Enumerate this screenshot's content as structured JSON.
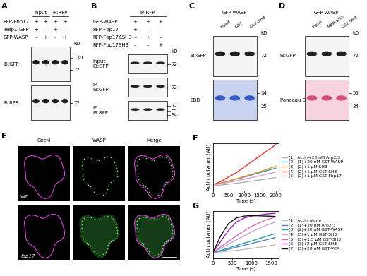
{
  "blot_panels": [
    {
      "label": "A",
      "lanes": 4,
      "unit": "kD",
      "headers": [
        {
          "text": "Input",
          "lanes": [
            0,
            1
          ]
        },
        {
          "text": "IP:RFP",
          "lanes": [
            2,
            3
          ]
        }
      ],
      "rows": [
        {
          "name": "RFP-Fbp17",
          "signs": [
            "+",
            "+",
            "+",
            "+"
          ]
        },
        {
          "name": "Teep1-GFP",
          "signs": [
            "+",
            "–",
            "+",
            "–"
          ]
        },
        {
          "name": "GFP-WASP",
          "signs": [
            "–",
            "+",
            "–",
            "+"
          ]
        }
      ],
      "blots": [
        {
          "label": [
            "IB:GFP"
          ],
          "markers": [
            130,
            72
          ]
        },
        {
          "label": [
            "IB:RFP"
          ],
          "markers": [
            72
          ]
        }
      ]
    },
    {
      "label": "B",
      "lanes": 3,
      "unit": "kD",
      "headers": [
        {
          "text": "IP:RFP",
          "lanes": [
            0,
            1,
            2
          ]
        }
      ],
      "rows": [
        {
          "name": "GFP-WASP",
          "signs": [
            "+",
            "+",
            "+"
          ]
        },
        {
          "name": "RFP-Fbp17",
          "signs": [
            "+",
            "–",
            "–"
          ]
        },
        {
          "name": "RFP-Fbp17ΔSH3",
          "signs": [
            "–",
            "+",
            "–"
          ]
        },
        {
          "name": "RFP-Fbp17SH3",
          "signs": [
            "–",
            "–",
            "+"
          ]
        }
      ],
      "blots": [
        {
          "label": [
            "Input",
            "IB:GFP"
          ],
          "markers": [
            72
          ]
        },
        {
          "label": [
            "IP",
            "IB:GFP"
          ],
          "markers": [
            72
          ]
        },
        {
          "label": [
            "IP",
            "IB:RFP"
          ],
          "markers": [
            72,
            55,
            34
          ]
        }
      ]
    },
    {
      "label": "C",
      "lanes": 3,
      "unit": "kD",
      "title": "GFP-WASP",
      "lane_labels": [
        "Input",
        "GST",
        "GST-SH3"
      ],
      "blots": [
        {
          "label": [
            "IB:GFP"
          ],
          "markers": [
            72
          ]
        },
        {
          "label": [
            "CBB"
          ],
          "markers": [
            34,
            25
          ]
        }
      ]
    },
    {
      "label": "D",
      "lanes": 3,
      "unit": "kD",
      "title": "GFP-WASP",
      "lane_labels": [
        "Input",
        "MBP-SH3",
        "GST-SH3"
      ],
      "blots": [
        {
          "label": [
            "IB:GFP"
          ],
          "markers": [
            72
          ]
        },
        {
          "label": [
            "Ponceau S"
          ],
          "markers": [
            55,
            34
          ]
        }
      ]
    }
  ],
  "image_panel": {
    "label": "E",
    "channels": [
      "GxcM",
      "WASP",
      "Merge"
    ],
    "rows": [
      "WT",
      "fbp17"
    ]
  },
  "chart_panel_labels": [
    "F",
    "G"
  ],
  "chart_data": [
    {
      "type": "line",
      "x_label": "Time (s)",
      "y_label": "Actin polymer (AU)",
      "x": [
        0,
        250,
        500,
        750,
        1000,
        1250,
        1500,
        1750,
        2000
      ],
      "xlim": [
        0,
        2100
      ],
      "xticks": [
        0,
        500,
        1000,
        1500,
        2000
      ],
      "ylim": [
        0,
        21
      ],
      "yticks": [],
      "tick_labels": "x",
      "legend": "center left",
      "series": [
        {
          "name": "(1)  Actin+20 nM Arp2/3",
          "color": "#b0b0b0",
          "values": [
            2.0,
            2.4,
            2.8,
            3.2,
            3.7,
            4.2,
            4.7,
            5.2,
            5.8
          ]
        },
        {
          "name": "(2)  (1)+20 nM GST-WASP",
          "color": "#2a9d9a",
          "values": [
            2.5,
            3.3,
            4.2,
            5.1,
            6.0,
            7.0,
            8.0,
            9.0,
            10.0
          ]
        },
        {
          "name": "(3)  (2)+1 μM SH3",
          "color": "#f08a2c",
          "values": [
            2.5,
            3.3,
            4.2,
            5.2,
            6.2,
            7.3,
            8.4,
            9.6,
            10.8
          ]
        },
        {
          "name": "(4)  (2)+1 μM GST-SH3",
          "color": "#e8322a",
          "values": [
            2.5,
            4.0,
            6.0,
            8.0,
            10.5,
            13.0,
            15.5,
            18.0,
            20.5
          ]
        },
        {
          "name": "(5)  (2)+1 μM GST-Fbp17",
          "color": "#d9a0d0",
          "values": [
            2.5,
            3.0,
            3.6,
            4.3,
            5.0,
            5.8,
            6.6,
            7.4,
            8.2
          ]
        }
      ]
    },
    {
      "type": "line",
      "x_label": "Time (s)",
      "y_label": "Actin polymer (AU)",
      "x": [
        0,
        200,
        400,
        600,
        800,
        1000,
        1200,
        1400,
        1600
      ],
      "xlim": [
        0,
        1700
      ],
      "xticks": [
        0,
        500,
        1000,
        1500
      ],
      "ylim": [
        0,
        17
      ],
      "yticks": [],
      "tick_labels": "x",
      "legend": "center left",
      "series": [
        {
          "name": "(1)  Actin alone",
          "color": "#c0c0c0",
          "values": [
            2.0,
            2.2,
            2.5,
            2.8,
            3.1,
            3.5,
            3.9,
            4.3,
            4.8
          ]
        },
        {
          "name": "(2)  (1)+20 nM Arp2/3",
          "color": "#5b7fc7",
          "values": [
            2.0,
            2.6,
            3.2,
            3.9,
            4.6,
            5.3,
            6.0,
            6.7,
            7.4
          ]
        },
        {
          "name": "(3)  (2)+20 nM GST-WASP",
          "color": "#2aa0a0",
          "values": [
            2.0,
            2.8,
            3.6,
            4.5,
            5.4,
            6.2,
            7.1,
            8.0,
            8.8
          ]
        },
        {
          "name": "(4)  (3)+1 μM GST-SH3",
          "color": "#c9a6e0",
          "values": [
            2.0,
            3.5,
            5.0,
            6.5,
            8.0,
            9.5,
            10.8,
            12.0,
            13.0
          ]
        },
        {
          "name": "(5)  (3)+1.5 μM GST-SH3",
          "color": "#e06fb0",
          "values": [
            2.0,
            4.0,
            6.0,
            8.0,
            9.8,
            11.5,
            12.8,
            14.0,
            14.8
          ]
        },
        {
          "name": "(6)  (3)+2 μM GST-SH3",
          "color": "#a020c0",
          "values": [
            2.0,
            6.0,
            10.0,
            13.0,
            14.5,
            15.2,
            15.6,
            16.0,
            16.2
          ]
        },
        {
          "name": "(7)  (3)+20 nM GST-VCA",
          "color": "#111111",
          "values": [
            2.0,
            8.0,
            12.5,
            14.5,
            15.2,
            15.4,
            15.3,
            15.2,
            15.1
          ]
        }
      ]
    }
  ]
}
